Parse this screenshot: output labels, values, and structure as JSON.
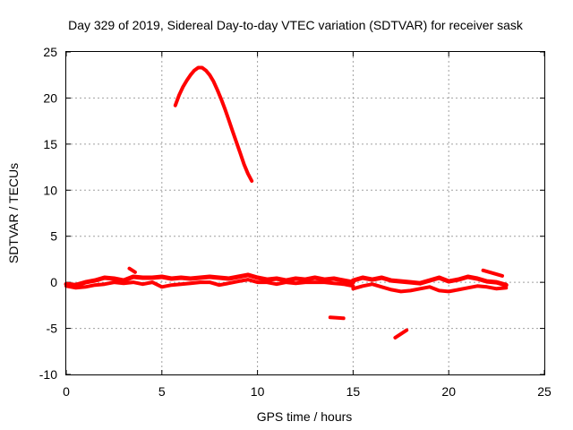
{
  "chart_data": {
    "type": "scatter",
    "title": "Day 329 of 2019, Sidereal Day-to-day VTEC variation (SDTVAR) for receiver sask",
    "xlabel": "GPS time / hours",
    "ylabel": "SDTVAR / TECUs",
    "xlim": [
      0,
      25
    ],
    "ylim": [
      -10,
      25
    ],
    "xticks": [
      0,
      5,
      10,
      15,
      20,
      25
    ],
    "yticks": [
      -10,
      -5,
      0,
      5,
      10,
      15,
      20,
      25
    ],
    "xtick_labels": [
      "0",
      "5",
      "10",
      "15",
      "20",
      "25"
    ],
    "ytick_labels": [
      "-10",
      "-5",
      "0",
      "5",
      "10",
      "15",
      "20",
      "25"
    ],
    "grid": true,
    "color": "#ff0000",
    "series": [
      {
        "name": "arc-high",
        "x": [
          5.7,
          5.9,
          6.1,
          6.3,
          6.5,
          6.7,
          6.9,
          7.1,
          7.3,
          7.5,
          7.7,
          7.9,
          8.1,
          8.3,
          8.5,
          8.7,
          8.9,
          9.1,
          9.3,
          9.5,
          9.7
        ],
        "y": [
          19.2,
          20.3,
          21.2,
          21.9,
          22.5,
          23.0,
          23.3,
          23.3,
          23.0,
          22.5,
          21.8,
          20.9,
          19.9,
          18.8,
          17.6,
          16.4,
          15.2,
          14.0,
          12.8,
          11.8,
          11.0
        ],
        "width": 4
      },
      {
        "name": "band-main-upper",
        "x": [
          0,
          0.5,
          1.0,
          1.5,
          2.0,
          2.5,
          3.0,
          3.5,
          4.0,
          4.5,
          5.0,
          5.5,
          6.0,
          6.5,
          7.0,
          7.5,
          8.0,
          8.5,
          9.0,
          9.5,
          10.0,
          10.5,
          11.0,
          11.5,
          12.0,
          12.5,
          13.0,
          13.5,
          14.0,
          14.5,
          15.0
        ],
        "y": [
          -0.2,
          -0.3,
          0.0,
          0.2,
          0.5,
          0.4,
          0.2,
          0.6,
          0.5,
          0.5,
          0.6,
          0.4,
          0.5,
          0.4,
          0.5,
          0.6,
          0.5,
          0.4,
          0.6,
          0.8,
          0.5,
          0.3,
          0.4,
          0.2,
          0.4,
          0.3,
          0.5,
          0.3,
          0.4,
          0.2,
          0.0
        ],
        "width": 5
      },
      {
        "name": "band-main-lower",
        "x": [
          0,
          0.5,
          1.0,
          1.5,
          2.0,
          2.5,
          3.0,
          3.5,
          4.0,
          4.5,
          5.0,
          5.5,
          6.0,
          6.5,
          7.0,
          7.5,
          8.0,
          8.5,
          9.0,
          9.5,
          10.0,
          10.5,
          11.0,
          11.5,
          12.0,
          12.5,
          13.0,
          13.5,
          14.0,
          14.5,
          15.0
        ],
        "y": [
          -0.4,
          -0.6,
          -0.5,
          -0.3,
          -0.2,
          0.0,
          -0.1,
          0.0,
          -0.2,
          0.0,
          -0.5,
          -0.3,
          -0.2,
          -0.1,
          0.0,
          0.0,
          -0.3,
          -0.1,
          0.1,
          0.3,
          0.0,
          0.0,
          -0.2,
          0.0,
          -0.1,
          0.0,
          0.0,
          0.0,
          -0.1,
          -0.2,
          -0.4
        ],
        "width": 4
      },
      {
        "name": "band-late-upper",
        "x": [
          15.0,
          15.5,
          16.0,
          16.5,
          17.0,
          17.5,
          18.0,
          18.5,
          19.0,
          19.5,
          20.0,
          20.5,
          21.0,
          21.5,
          22.0,
          22.5,
          23.0
        ],
        "y": [
          0.2,
          0.5,
          0.3,
          0.5,
          0.2,
          0.1,
          0.0,
          -0.1,
          0.2,
          0.5,
          0.1,
          0.3,
          0.6,
          0.4,
          0.1,
          0.0,
          -0.3
        ],
        "width": 5
      },
      {
        "name": "band-late-lower",
        "x": [
          15.0,
          15.5,
          16.0,
          16.5,
          17.0,
          17.5,
          18.0,
          18.5,
          19.0,
          19.5,
          20.0,
          20.5,
          21.0,
          21.5,
          22.0,
          22.5,
          23.0
        ],
        "y": [
          -0.7,
          -0.4,
          -0.2,
          -0.5,
          -0.8,
          -1.0,
          -0.9,
          -0.7,
          -0.5,
          -0.9,
          -1.0,
          -0.8,
          -0.6,
          -0.4,
          -0.5,
          -0.7,
          -0.6
        ],
        "width": 4
      },
      {
        "name": "seg-1",
        "x": [
          3.3,
          3.6
        ],
        "y": [
          1.5,
          1.1
        ],
        "width": 4
      },
      {
        "name": "seg-2",
        "x": [
          13.8,
          14.5
        ],
        "y": [
          -3.8,
          -3.9
        ],
        "width": 4
      },
      {
        "name": "seg-3",
        "x": [
          17.2,
          17.8
        ],
        "y": [
          -6.0,
          -5.2
        ],
        "width": 4
      },
      {
        "name": "seg-4",
        "x": [
          21.8,
          22.8
        ],
        "y": [
          1.3,
          0.7
        ],
        "width": 4
      }
    ]
  }
}
